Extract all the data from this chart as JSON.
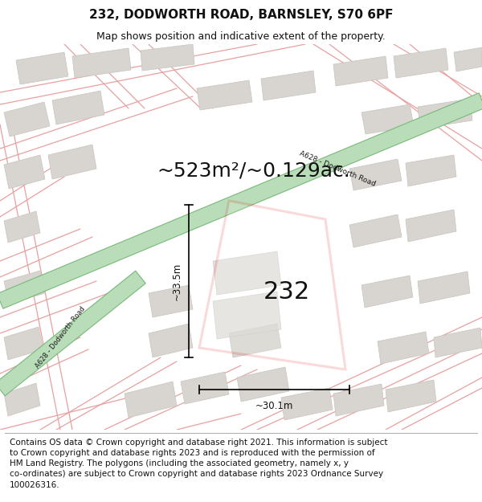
{
  "title": "232, DODWORTH ROAD, BARNSLEY, S70 6PF",
  "subtitle": "Map shows position and indicative extent of the property.",
  "area_text": "~523m²/~0.129ac.",
  "property_number": "232",
  "dim_width": "~30.1m",
  "dim_height": "~33.5m",
  "road_label": "A628 - Dodworth Road",
  "footer_text": "Contains OS data © Crown copyright and database right 2021. This information is subject to Crown copyright and database rights 2023 and is reproduced with the permission of HM Land Registry. The polygons (including the associated geometry, namely x, y co-ordinates) are subject to Crown copyright and database rights 2023 Ordnance Survey 100026316.",
  "bg_color": "#f7f6f2",
  "road_color": "#b8ddb8",
  "road_border_color": "#7ab87a",
  "plot_outline_color": "#dd0000",
  "building_fill": "#d8d5d0",
  "building_outline": "#d8d5d0",
  "road_line_color": "#e8a0a0",
  "title_fontsize": 11,
  "subtitle_fontsize": 9,
  "area_fontsize": 18,
  "number_fontsize": 22,
  "footer_fontsize": 7.5,
  "footer_line2": "to Crown copyright and database rights 2023 and is reproduced with the permission of",
  "footer_line3": "HM Land Registry. The polygons (including the associated geometry, namely x, y",
  "footer_line4": "co-ordinates) are subject to Crown copyright and database rights 2023 Ordnance Survey",
  "footer_line5": "100026316."
}
